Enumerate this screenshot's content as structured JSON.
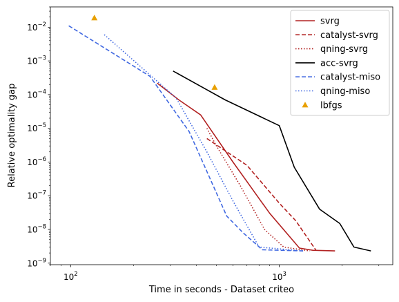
{
  "chart_data": {
    "type": "line",
    "title": "",
    "xlabel": "Time in seconds - Dataset criteo",
    "ylabel": "Relative optimality gap",
    "xscale": "log",
    "yscale": "log",
    "xlim": [
      80,
      3500
    ],
    "ylim": [
      9e-10,
      0.04
    ],
    "xticks": [
      {
        "value": 100,
        "base": "10",
        "exp": "2"
      },
      {
        "value": 1000,
        "base": "10",
        "exp": "3"
      }
    ],
    "yticks": [
      {
        "value": 1e-09,
        "base": "10",
        "exp": "−9"
      },
      {
        "value": 1e-08,
        "base": "10",
        "exp": "−8"
      },
      {
        "value": 1e-07,
        "base": "10",
        "exp": "−7"
      },
      {
        "value": 1e-06,
        "base": "10",
        "exp": "−6"
      },
      {
        "value": 1e-05,
        "base": "10",
        "exp": "−5"
      },
      {
        "value": 0.0001,
        "base": "10",
        "exp": "−4"
      },
      {
        "value": 0.001,
        "base": "10",
        "exp": "−3"
      },
      {
        "value": 0.01,
        "base": "10",
        "exp": "−2"
      }
    ],
    "grid": false,
    "legend_position": "top-right",
    "series": [
      {
        "name": "svrg",
        "style": "solid",
        "marker": "none",
        "color": "#b22222",
        "x": [
          260,
          330,
          420,
          600,
          900,
          1250,
          1450,
          1850
        ],
        "y": [
          0.00022,
          7e-05,
          2.5e-05,
          1e-06,
          3e-08,
          2.8e-09,
          2.4e-09,
          2.3e-09
        ]
      },
      {
        "name": "catalyst-svrg",
        "style": "dashed",
        "marker": "none",
        "color": "#b22222",
        "x": [
          450,
          700,
          1000,
          1200,
          1500
        ],
        "y": [
          5e-06,
          8e-07,
          6e-08,
          1.8e-08,
          2.4e-09
        ]
      },
      {
        "name": "qning-svrg",
        "style": "dotted",
        "marker": "none",
        "color": "#b22222",
        "x": [
          450,
          500,
          650,
          850,
          1050,
          1400
        ],
        "y": [
          1e-05,
          3e-06,
          2e-07,
          1e-08,
          3e-09,
          2.3e-09
        ]
      },
      {
        "name": "acc-svrg",
        "style": "solid",
        "marker": "none",
        "color": "#000000",
        "x": [
          310,
          550,
          1000,
          1180,
          1560,
          1950,
          2280,
          2750
        ],
        "y": [
          0.0005,
          7e-05,
          1.2e-05,
          7e-07,
          4e-08,
          1.5e-08,
          3e-09,
          2.3e-09
        ]
      },
      {
        "name": "catalyst-miso",
        "style": "dashed",
        "marker": "none",
        "color": "#4169e1",
        "x": [
          98,
          240,
          370,
          560,
          670,
          830,
          1300
        ],
        "y": [
          0.011,
          0.00035,
          8e-06,
          2.5e-08,
          8e-09,
          2.5e-09,
          2.3e-09
        ]
      },
      {
        "name": "qning-miso",
        "style": "dotted",
        "marker": "none",
        "color": "#4169e1",
        "x": [
          145,
          320,
          450,
          600,
          800,
          1300
        ],
        "y": [
          0.006,
          8e-05,
          2e-06,
          7e-08,
          3e-09,
          2.3e-09
        ]
      },
      {
        "name": "lbfgs",
        "style": "none",
        "marker": "triangle",
        "color": "#e8a000",
        "x": [
          130,
          490
        ],
        "y": [
          0.019,
          0.000165
        ]
      }
    ]
  }
}
